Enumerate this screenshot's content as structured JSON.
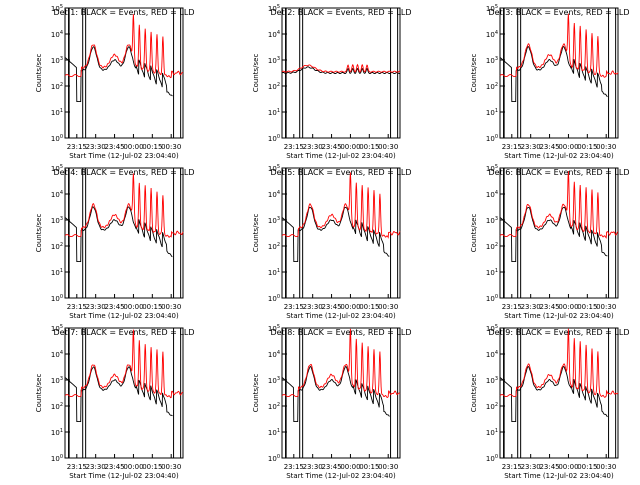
{
  "chart_data": [
    {
      "type": "line",
      "title": "Det 1: BLACK = Events, RED = LLD",
      "xlabel": "Start Time (12-Jul-02 23:04:40)",
      "ylabel": "Counts/sec",
      "x_ticks": [
        "23:15",
        "23:30",
        "23:45",
        "00:00",
        "00:15",
        "00:30"
      ],
      "y_ticks": [
        "10^0",
        "10^1",
        "10^2",
        "10^3",
        "10^4",
        "10^5"
      ],
      "ylim_log10": [
        0,
        5
      ],
      "y_scale": "log",
      "series": [
        {
          "name": "BLACK = Events",
          "color": "#000000"
        },
        {
          "name": "RED = LLD",
          "color": "#ff0000"
        }
      ]
    },
    {
      "type": "line",
      "title": "Det 2: BLACK = Events, RED = LLD",
      "xlabel": "Start Time (12-Jul-02 23:04:40)",
      "ylabel": "Counts/sec",
      "x_ticks": [
        "23:15",
        "23:30",
        "23:45",
        "00:00",
        "00:15",
        "00:30"
      ],
      "y_ticks": [
        "10^0",
        "10^1",
        "10^2",
        "10^3",
        "10^4",
        "10^5"
      ],
      "ylim_log10": [
        0,
        5
      ],
      "y_scale": "log",
      "series": [
        {
          "name": "BLACK = Events",
          "color": "#000000"
        },
        {
          "name": "RED = LLD",
          "color": "#ff0000"
        }
      ]
    },
    {
      "type": "line",
      "title": "Det 3: BLACK = Events, RED = LLD",
      "xlabel": "Start Time (12-Jul-02 23:04:40)",
      "ylabel": "Counts/sec",
      "x_ticks": [
        "23:15",
        "23:30",
        "23:45",
        "00:00",
        "00:15",
        "00:30"
      ],
      "y_ticks": [
        "10^0",
        "10^1",
        "10^2",
        "10^3",
        "10^4",
        "10^5"
      ],
      "ylim_log10": [
        0,
        5
      ],
      "y_scale": "log",
      "series": [
        {
          "name": "BLACK = Events",
          "color": "#000000"
        },
        {
          "name": "RED = LLD",
          "color": "#ff0000"
        }
      ]
    },
    {
      "type": "line",
      "title": "Det 4: BLACK = Events, RED = LLD",
      "xlabel": "Start Time (12-Jul-02 23:04:40)",
      "ylabel": "Counts/sec",
      "x_ticks": [
        "23:15",
        "23:30",
        "23:45",
        "00:00",
        "00:15",
        "00:30"
      ],
      "y_ticks": [
        "10^0",
        "10^1",
        "10^2",
        "10^3",
        "10^4",
        "10^5"
      ],
      "ylim_log10": [
        0,
        5
      ],
      "y_scale": "log",
      "series": [
        {
          "name": "BLACK = Events",
          "color": "#000000"
        },
        {
          "name": "RED = LLD",
          "color": "#ff0000"
        }
      ]
    },
    {
      "type": "line",
      "title": "Det 5: BLACK = Events, RED = LLD",
      "xlabel": "Start Time (12-Jul-02 23:04:40)",
      "ylabel": "Counts/sec",
      "x_ticks": [
        "23:15",
        "23:30",
        "23:45",
        "00:00",
        "00:15",
        "00:30"
      ],
      "y_ticks": [
        "10^0",
        "10^1",
        "10^2",
        "10^3",
        "10^4",
        "10^5"
      ],
      "ylim_log10": [
        0,
        5
      ],
      "y_scale": "log",
      "series": [
        {
          "name": "BLACK = Events",
          "color": "#000000"
        },
        {
          "name": "RED = LLD",
          "color": "#ff0000"
        }
      ]
    },
    {
      "type": "line",
      "title": "Det 6: BLACK = Events, RED = LLD",
      "xlabel": "Start Time (12-Jul-02 23:04:40)",
      "ylabel": "Counts/sec",
      "x_ticks": [
        "23:15",
        "23:30",
        "23:45",
        "00:00",
        "00:15",
        "00:30"
      ],
      "y_ticks": [
        "10^0",
        "10^1",
        "10^2",
        "10^3",
        "10^4",
        "10^5"
      ],
      "ylim_log10": [
        0,
        5
      ],
      "y_scale": "log",
      "series": [
        {
          "name": "BLACK = Events",
          "color": "#000000"
        },
        {
          "name": "RED = LLD",
          "color": "#ff0000"
        }
      ]
    },
    {
      "type": "line",
      "title": "Det 7: BLACK = Events, RED = LLD",
      "xlabel": "Start Time (12-Jul-02 23:04:40)",
      "ylabel": "Counts/sec",
      "x_ticks": [
        "23:15",
        "23:30",
        "23:45",
        "00:00",
        "00:15",
        "00:30"
      ],
      "y_ticks": [
        "10^0",
        "10^1",
        "10^2",
        "10^3",
        "10^4",
        "10^5"
      ],
      "ylim_log10": [
        0,
        5
      ],
      "y_scale": "log",
      "series": [
        {
          "name": "BLACK = Events",
          "color": "#000000"
        },
        {
          "name": "RED = LLD",
          "color": "#ff0000"
        }
      ]
    },
    {
      "type": "line",
      "title": "Det 8: BLACK = Events, RED = LLD",
      "xlabel": "Start Time (12-Jul-02 23:04:40)",
      "ylabel": "Counts/sec",
      "x_ticks": [
        "23:15",
        "23:30",
        "23:45",
        "00:00",
        "00:15",
        "00:30"
      ],
      "y_ticks": [
        "10^0",
        "10^1",
        "10^2",
        "10^3",
        "10^4",
        "10^5"
      ],
      "ylim_log10": [
        0,
        5
      ],
      "y_scale": "log",
      "series": [
        {
          "name": "BLACK = Events",
          "color": "#000000"
        },
        {
          "name": "RED = LLD",
          "color": "#ff0000"
        }
      ]
    },
    {
      "type": "line",
      "title": "Det 9: BLACK = Events, RED = LLD",
      "xlabel": "Start Time (12-Jul-02 23:04:40)",
      "ylabel": "Counts/sec",
      "x_ticks": [
        "23:15",
        "23:30",
        "23:45",
        "00:00",
        "00:15",
        "00:30"
      ],
      "y_ticks": [
        "10^0",
        "10^1",
        "10^2",
        "10^3",
        "10^4",
        "10^5"
      ],
      "ylim_log10": [
        0,
        5
      ],
      "y_scale": "log",
      "series": [
        {
          "name": "BLACK = Events",
          "color": "#000000"
        },
        {
          "name": "RED = LLD",
          "color": "#ff0000"
        }
      ]
    }
  ]
}
